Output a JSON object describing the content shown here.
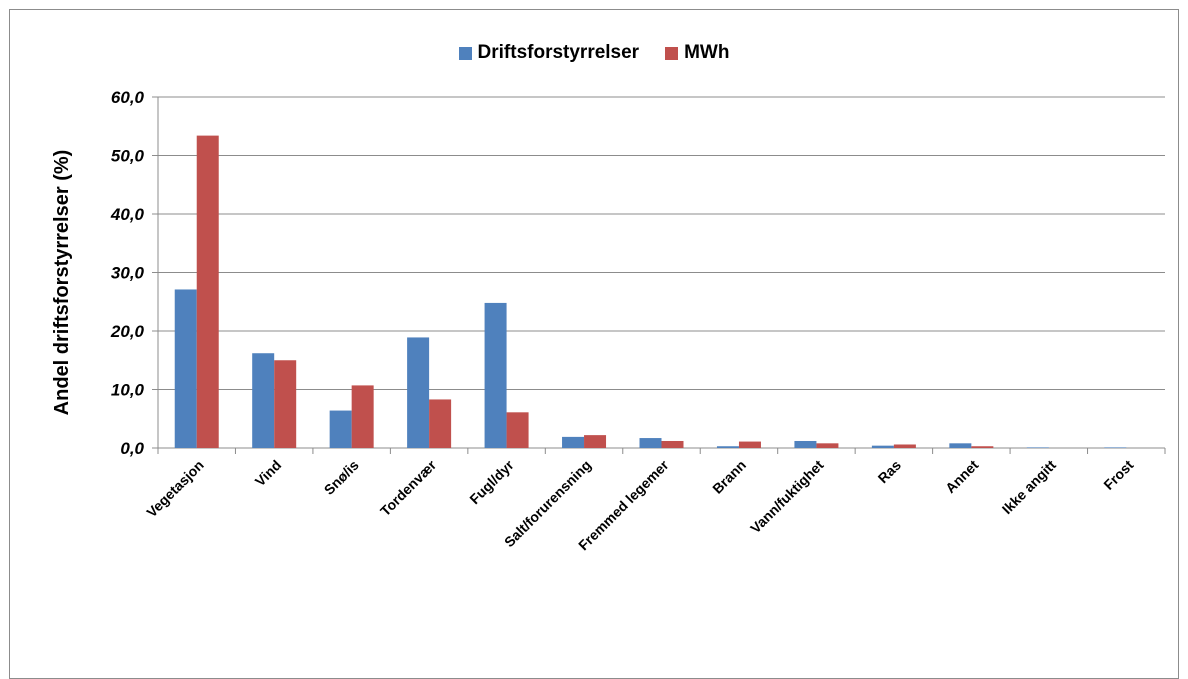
{
  "chart_data": {
    "type": "bar",
    "title": "",
    "xlabel": "",
    "ylabel": "Andel driftsforstyrrelser (%)",
    "ylim": [
      0,
      60
    ],
    "yticks": [
      "0,0",
      "10,0",
      "20,0",
      "30,0",
      "40,0",
      "50,0",
      "60,0"
    ],
    "grid": true,
    "legend_position": "top-center",
    "categories": [
      "Vegetasjon",
      "Vind",
      "Snø/is",
      "Tordenvær",
      "Fugl/dyr",
      "Salt/forurensning",
      "Fremmed legemer",
      "Brann",
      "Vann/fuktighet",
      "Ras",
      "Annet",
      "Ikke angitt",
      "Frost"
    ],
    "series": [
      {
        "name": "Driftsforstyrrelser",
        "color": "#4f81bd",
        "values": [
          27.1,
          16.2,
          6.4,
          18.9,
          24.8,
          1.9,
          1.7,
          0.3,
          1.2,
          0.4,
          0.8,
          0.1,
          0.1
        ]
      },
      {
        "name": "MWh",
        "color": "#c0504d",
        "values": [
          53.4,
          15.0,
          10.7,
          8.3,
          6.1,
          2.2,
          1.2,
          1.1,
          0.8,
          0.6,
          0.3,
          0.0,
          0.0
        ]
      }
    ]
  }
}
